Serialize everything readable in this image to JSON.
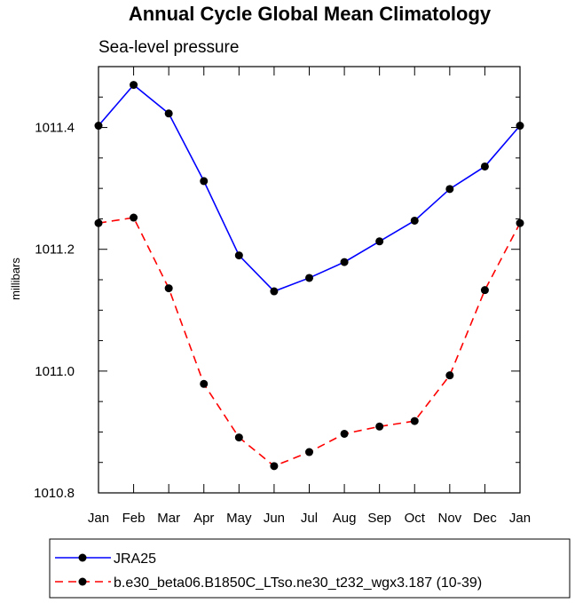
{
  "chart_data": {
    "type": "line",
    "title": "Annual Cycle Global Mean Climatology",
    "subtitle": "Sea-level pressure",
    "ylabel": "millibars",
    "xlabel": "",
    "categories": [
      "Jan",
      "Feb",
      "Mar",
      "Apr",
      "May",
      "Jun",
      "Jul",
      "Aug",
      "Sep",
      "Oct",
      "Nov",
      "Dec",
      "Jan"
    ],
    "ylim": [
      1010.8,
      1011.5
    ],
    "yticks": [
      1010.8,
      1011.0,
      1011.2,
      1011.4
    ],
    "ytick_labels": [
      "1010.8",
      "1011.0",
      "1011.2",
      "1011.4"
    ],
    "grid": false,
    "legend_position": "bottom",
    "series": [
      {
        "name": "JRA25",
        "color": "#0000ff",
        "dash": "solid",
        "marker": "filled-circle",
        "values": [
          1011.403,
          1011.47,
          1011.423,
          1011.312,
          1011.19,
          1011.131,
          1011.153,
          1011.179,
          1011.213,
          1011.247,
          1011.299,
          1011.336,
          1011.403
        ]
      },
      {
        "name": "b.e30_beta06.B1850C_LTso.ne30_t232_wgx3.187 (10-39)",
        "color": "#ff0000",
        "dash": "dashed",
        "marker": "filled-circle",
        "values": [
          1011.243,
          1011.252,
          1011.136,
          1010.979,
          1010.891,
          1010.844,
          1010.867,
          1010.897,
          1010.909,
          1010.918,
          1010.993,
          1011.133,
          1011.243
        ]
      }
    ]
  }
}
